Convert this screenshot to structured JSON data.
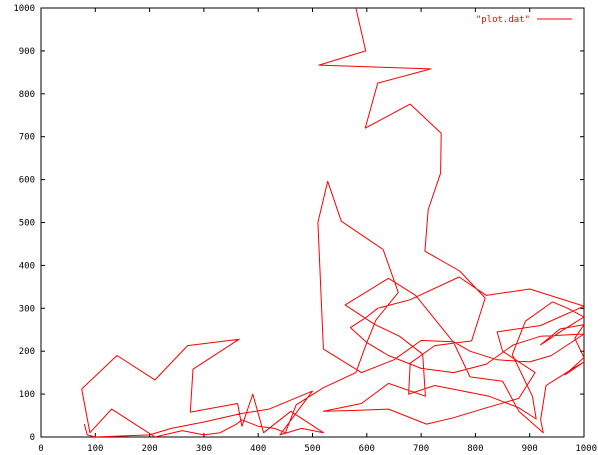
{
  "chart_data": {
    "type": "line",
    "title": "",
    "xlabel": "",
    "ylabel": "",
    "xlim": [
      0,
      1000
    ],
    "ylim": [
      0,
      1000
    ],
    "x_ticks": [
      0,
      100,
      200,
      300,
      400,
      500,
      600,
      700,
      800,
      900,
      1000
    ],
    "y_ticks": [
      0,
      100,
      200,
      300,
      400,
      500,
      600,
      700,
      800,
      900,
      1000
    ],
    "x_tick_labels": [
      "0",
      "100",
      "200",
      "300",
      "400",
      "500",
      "600",
      "700",
      "800",
      "900",
      "1000"
    ],
    "y_tick_labels": [
      "0",
      "100",
      "200",
      "300",
      "400",
      "500",
      "600",
      "700",
      "800",
      "900",
      "1000"
    ],
    "grid": false,
    "legend_position": "top-right",
    "series": [
      {
        "name": "\"plot.dat\"",
        "color": "#ff0000",
        "points": [
          [
            580,
            1000
          ],
          [
            598,
            900
          ],
          [
            512,
            867
          ],
          [
            718,
            858
          ],
          [
            620,
            825
          ],
          [
            597,
            720
          ],
          [
            680,
            776
          ],
          [
            737,
            708
          ],
          [
            736,
            615
          ],
          [
            713,
            530
          ],
          [
            707,
            433
          ],
          [
            771,
            387
          ],
          [
            818,
            324
          ],
          [
            793,
            224
          ],
          [
            725,
            213
          ],
          [
            680,
            172
          ],
          [
            677,
            100
          ],
          [
            725,
            120
          ],
          [
            825,
            95
          ],
          [
            880,
            68
          ],
          [
            912,
            42
          ],
          [
            905,
            95
          ],
          [
            868,
            192
          ],
          [
            892,
            270
          ],
          [
            942,
            315
          ],
          [
            970,
            300
          ],
          [
            1000,
            280
          ],
          [
            962,
            250
          ],
          [
            920,
            215
          ],
          [
            956,
            252
          ],
          [
            1000,
            262
          ],
          [
            983,
            230
          ],
          [
            1000,
            185
          ],
          [
            965,
            145
          ],
          [
            1000,
            175
          ],
          [
            980,
            160
          ],
          [
            930,
            120
          ],
          [
            920,
            40
          ],
          [
            925,
            10
          ],
          [
            880,
            60
          ],
          [
            850,
            130
          ],
          [
            790,
            140
          ],
          [
            760,
            220
          ],
          [
            690,
            330
          ],
          [
            640,
            370
          ],
          [
            560,
            308
          ],
          [
            615,
            262
          ],
          [
            660,
            235
          ],
          [
            703,
            193
          ],
          [
            708,
            95
          ],
          [
            640,
            125
          ],
          [
            590,
            78
          ],
          [
            520,
            60
          ],
          [
            580,
            62
          ],
          [
            640,
            65
          ],
          [
            710,
            30
          ],
          [
            760,
            45
          ],
          [
            820,
            68
          ],
          [
            880,
            90
          ],
          [
            910,
            150
          ],
          [
            850,
            200
          ],
          [
            840,
            245
          ],
          [
            920,
            260
          ],
          [
            1000,
            305
          ],
          [
            900,
            345
          ],
          [
            820,
            330
          ],
          [
            770,
            373
          ],
          [
            680,
            320
          ],
          [
            620,
            300
          ],
          [
            600,
            280
          ],
          [
            570,
            255
          ],
          [
            600,
            220
          ],
          [
            640,
            190
          ],
          [
            700,
            160
          ],
          [
            760,
            150
          ],
          [
            820,
            170
          ],
          [
            870,
            215
          ],
          [
            920,
            235
          ],
          [
            1000,
            240
          ],
          [
            940,
            190
          ],
          [
            900,
            175
          ],
          [
            840,
            180
          ],
          [
            790,
            200
          ],
          [
            760,
            222
          ],
          [
            700,
            225
          ],
          [
            650,
            180
          ],
          [
            590,
            150
          ],
          [
            520,
            205
          ],
          [
            510,
            500
          ],
          [
            528,
            596
          ],
          [
            553,
            503
          ],
          [
            630,
            437
          ],
          [
            658,
            337
          ],
          [
            617,
            273
          ],
          [
            600,
            220
          ],
          [
            580,
            150
          ],
          [
            520,
            115
          ],
          [
            470,
            75
          ],
          [
            450,
            10
          ],
          [
            430,
            20
          ],
          [
            400,
            25
          ],
          [
            370,
            40
          ],
          [
            360,
            30
          ],
          [
            330,
            10
          ],
          [
            300,
            5
          ],
          [
            260,
            15
          ],
          [
            210,
            0
          ],
          [
            130,
            65
          ],
          [
            90,
            10
          ],
          [
            75,
            112
          ],
          [
            140,
            190
          ],
          [
            210,
            133
          ],
          [
            270,
            213
          ],
          [
            365,
            228
          ],
          [
            280,
            158
          ],
          [
            275,
            58
          ],
          [
            362,
            78
          ],
          [
            370,
            25
          ],
          [
            390,
            100
          ],
          [
            410,
            10
          ],
          [
            460,
            60
          ],
          [
            520,
            10
          ],
          [
            480,
            20
          ],
          [
            440,
            5
          ],
          [
            500,
            107
          ],
          [
            420,
            65
          ],
          [
            370,
            55
          ],
          [
            300,
            35
          ],
          [
            240,
            20
          ],
          [
            200,
            5
          ],
          [
            100,
            0
          ],
          [
            85,
            5
          ],
          [
            80,
            30
          ]
        ]
      }
    ]
  },
  "legend": {
    "label": "\"plot.dat\"",
    "line_color": "#ff0000",
    "text_color": "#ff0000"
  },
  "colors": {
    "axis": "#000000",
    "series": "#ff0000",
    "background": "#ffffff"
  }
}
